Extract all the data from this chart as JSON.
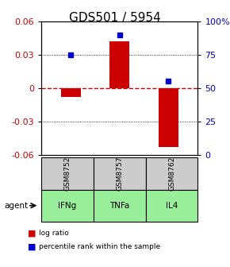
{
  "title": "GDS501 / 5954",
  "categories": [
    "IFNg",
    "TNFa",
    "IL4"
  ],
  "gsm_labels": [
    "GSM8752",
    "GSM8757",
    "GSM8762"
  ],
  "log_ratios": [
    -0.008,
    0.042,
    -0.053
  ],
  "percentile_ranks": [
    75,
    90,
    55
  ],
  "ylim_left": [
    -0.06,
    0.06
  ],
  "ylim_right": [
    0,
    100
  ],
  "yticks_left": [
    -0.06,
    -0.03,
    0,
    0.03,
    0.06
  ],
  "yticks_right": [
    0,
    25,
    50,
    75,
    100
  ],
  "bar_color": "#cc0000",
  "dot_color": "#0000cc",
  "grid_color": "#000000",
  "zero_line_color": "#cc0000",
  "gsm_bg_color": "#cccccc",
  "agent_bg_color": "#99ee99",
  "title_fontsize": 11,
  "tick_fontsize": 8,
  "legend_fontsize": 7,
  "bar_width": 0.4
}
